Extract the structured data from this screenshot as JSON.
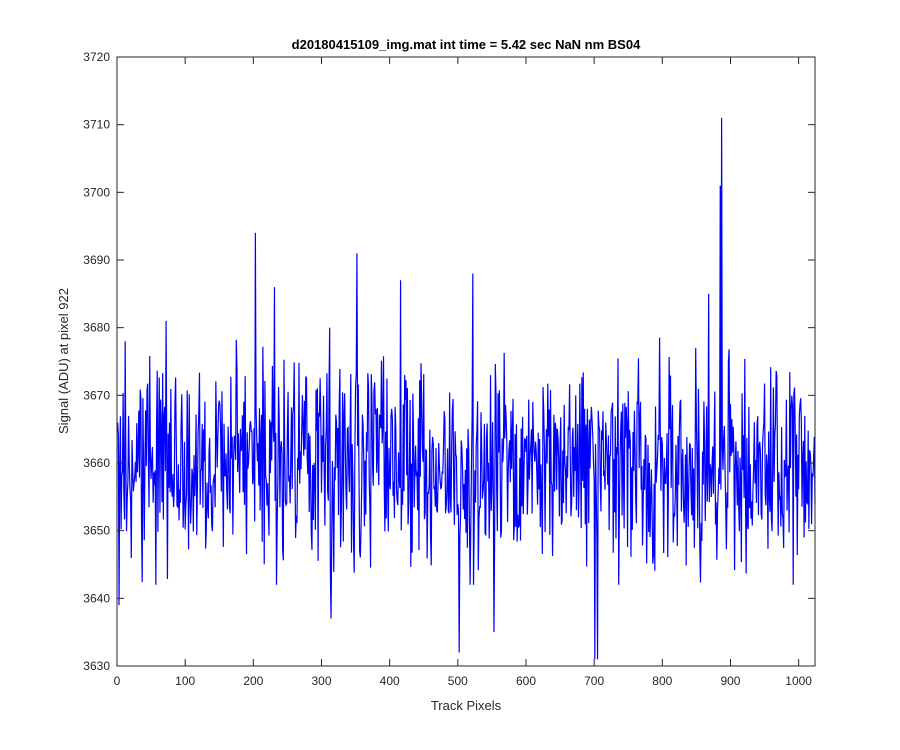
{
  "chart_data": {
    "type": "line",
    "title": "d20180415109_img.mat int time = 5.42 sec  NaN nm BS04",
    "xlabel": "Track Pixels",
    "ylabel": "Signal (ADU) at pixel 922",
    "xlim": [
      0,
      1024
    ],
    "ylim": [
      3630,
      3720
    ],
    "xticks": [
      0,
      100,
      200,
      300,
      400,
      500,
      600,
      700,
      800,
      900,
      1000
    ],
    "yticks": [
      3630,
      3640,
      3650,
      3660,
      3670,
      3680,
      3690,
      3700,
      3710,
      3720
    ],
    "grid": false,
    "legend": "none",
    "series": [
      {
        "color": "#0000ff",
        "x_start": 1,
        "x_step": 1,
        "y_range": [
          3631,
          3711
        ],
        "sample_count": 1024,
        "notable_points": [
          {
            "x": 2,
            "y": 3664
          },
          {
            "x": 3,
            "y": 3639
          },
          {
            "x": 12,
            "y": 3678
          },
          {
            "x": 72,
            "y": 3681
          },
          {
            "x": 203,
            "y": 3694
          },
          {
            "x": 231,
            "y": 3686
          },
          {
            "x": 312,
            "y": 3680
          },
          {
            "x": 314,
            "y": 3637
          },
          {
            "x": 352,
            "y": 3691
          },
          {
            "x": 416,
            "y": 3687
          },
          {
            "x": 502,
            "y": 3632
          },
          {
            "x": 522,
            "y": 3688
          },
          {
            "x": 553,
            "y": 3635
          },
          {
            "x": 701,
            "y": 3631
          },
          {
            "x": 705,
            "y": 3631
          },
          {
            "x": 868,
            "y": 3685
          },
          {
            "x": 885,
            "y": 3701
          },
          {
            "x": 887,
            "y": 3711
          },
          {
            "x": 1024,
            "y": 3654
          }
        ]
      }
    ]
  }
}
